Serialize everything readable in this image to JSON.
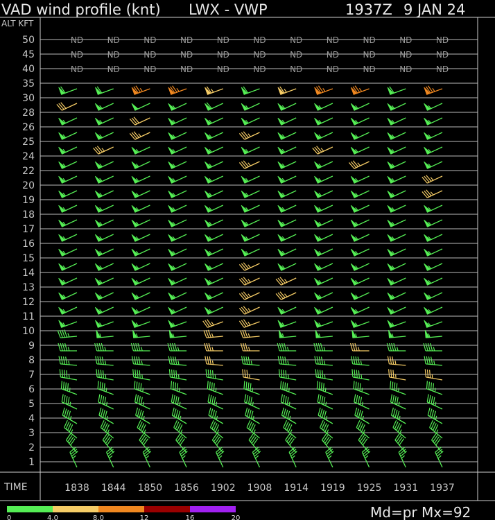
{
  "header": {
    "product": "VAD wind profile (knt)",
    "station": "LWX - VWP",
    "time": "1937Z",
    "date": "9 JAN 24"
  },
  "axis": {
    "alt_label": "ALT KFT",
    "time_label": "TIME",
    "nd_label": "ND"
  },
  "legend": {
    "ticks": [
      "0",
      "4.0",
      "8.0",
      "12",
      "16",
      "20"
    ],
    "colors": [
      "#55ee55",
      "#f5cc66",
      "#f08820",
      "#990000",
      "#a020f0"
    ]
  },
  "footer": {
    "mode": "Md=pr Mx=92"
  },
  "chart_data": {
    "type": "wind_profile",
    "title": "VAD wind profile (knt)",
    "times": [
      "1838",
      "1844",
      "1850",
      "1856",
      "1902",
      "1908",
      "1914",
      "1919",
      "1925",
      "1931",
      "1937"
    ],
    "altitudes_kft": [
      "50",
      "45",
      "40",
      "35",
      "30",
      "28",
      "26",
      "25",
      "24",
      "22",
      "20",
      "19",
      "18",
      "17",
      "16",
      "15",
      "14",
      "13",
      "12",
      "11",
      "10",
      "9",
      "8",
      "7",
      "6",
      "5",
      "4",
      "3",
      "2",
      "1"
    ],
    "nd_altitudes": [
      "50",
      "45",
      "40"
    ],
    "wind_rows": [
      {
        "alt": "35",
        "speed": [
          60,
          60,
          75,
          75,
          65,
          60,
          65,
          75,
          75,
          60,
          75
        ],
        "dir": [
          250,
          250,
          250,
          250,
          250,
          250,
          250,
          250,
          250,
          250,
          250
        ]
      },
      {
        "alt": "30",
        "speed": [
          30,
          55,
          50,
          55,
          60,
          55,
          55,
          55,
          55,
          55,
          55
        ],
        "dir": [
          245,
          245,
          245,
          245,
          245,
          245,
          245,
          245,
          245,
          245,
          245
        ]
      },
      {
        "alt": "28",
        "speed": [
          55,
          55,
          30,
          55,
          55,
          55,
          55,
          55,
          55,
          55,
          55
        ],
        "dir": [
          245,
          245,
          245,
          245,
          245,
          245,
          245,
          245,
          245,
          245,
          245
        ]
      },
      {
        "alt": "26",
        "speed": [
          55,
          55,
          35,
          55,
          55,
          35,
          55,
          55,
          55,
          55,
          55
        ],
        "dir": [
          245,
          245,
          245,
          245,
          245,
          245,
          245,
          245,
          245,
          245,
          245
        ]
      },
      {
        "alt": "25",
        "speed": [
          55,
          35,
          55,
          55,
          55,
          55,
          55,
          35,
          55,
          55,
          55
        ],
        "dir": [
          245,
          245,
          245,
          245,
          245,
          245,
          245,
          245,
          245,
          245,
          245
        ]
      },
      {
        "alt": "24",
        "speed": [
          55,
          55,
          55,
          55,
          55,
          35,
          55,
          55,
          35,
          55,
          55
        ],
        "dir": [
          245,
          245,
          245,
          245,
          245,
          245,
          245,
          245,
          245,
          245,
          245
        ]
      },
      {
        "alt": "22",
        "speed": [
          55,
          55,
          55,
          55,
          55,
          55,
          55,
          55,
          55,
          55,
          35
        ],
        "dir": [
          245,
          245,
          245,
          245,
          245,
          245,
          245,
          245,
          245,
          245,
          245
        ]
      },
      {
        "alt": "20",
        "speed": [
          55,
          55,
          55,
          55,
          55,
          55,
          55,
          55,
          55,
          55,
          35
        ],
        "dir": [
          245,
          245,
          245,
          245,
          245,
          245,
          245,
          245,
          245,
          245,
          245
        ]
      },
      {
        "alt": "19",
        "speed": [
          55,
          55,
          55,
          55,
          55,
          55,
          55,
          55,
          55,
          55,
          55
        ],
        "dir": [
          245,
          245,
          245,
          245,
          245,
          245,
          245,
          245,
          245,
          245,
          245
        ]
      },
      {
        "alt": "18",
        "speed": [
          55,
          55,
          55,
          55,
          55,
          55,
          55,
          55,
          55,
          55,
          55
        ],
        "dir": [
          245,
          245,
          245,
          245,
          245,
          245,
          245,
          245,
          245,
          245,
          245
        ]
      },
      {
        "alt": "17",
        "speed": [
          55,
          55,
          55,
          55,
          55,
          55,
          55,
          55,
          55,
          55,
          55
        ],
        "dir": [
          245,
          245,
          245,
          245,
          245,
          245,
          245,
          245,
          245,
          245,
          245
        ]
      },
      {
        "alt": "16",
        "speed": [
          55,
          55,
          55,
          55,
          55,
          55,
          55,
          55,
          55,
          55,
          55
        ],
        "dir": [
          245,
          245,
          245,
          245,
          245,
          245,
          245,
          245,
          245,
          245,
          245
        ]
      },
      {
        "alt": "15",
        "speed": [
          55,
          55,
          55,
          55,
          55,
          35,
          55,
          55,
          55,
          55,
          55
        ],
        "dir": [
          245,
          245,
          245,
          245,
          245,
          245,
          245,
          245,
          245,
          245,
          245
        ]
      },
      {
        "alt": "14",
        "speed": [
          55,
          55,
          55,
          55,
          55,
          35,
          35,
          55,
          55,
          55,
          55
        ],
        "dir": [
          245,
          245,
          245,
          245,
          245,
          245,
          245,
          245,
          245,
          245,
          245
        ]
      },
      {
        "alt": "13",
        "speed": [
          55,
          55,
          55,
          55,
          55,
          35,
          35,
          55,
          55,
          55,
          55
        ],
        "dir": [
          245,
          245,
          245,
          245,
          245,
          245,
          245,
          245,
          245,
          245,
          245
        ]
      },
      {
        "alt": "12",
        "speed": [
          55,
          55,
          55,
          55,
          55,
          35,
          55,
          55,
          55,
          55,
          55
        ],
        "dir": [
          245,
          245,
          245,
          245,
          245,
          245,
          245,
          245,
          245,
          245,
          245
        ]
      },
      {
        "alt": "11",
        "speed": [
          55,
          55,
          55,
          55,
          35,
          35,
          55,
          55,
          55,
          55,
          55
        ],
        "dir": [
          250,
          250,
          250,
          250,
          250,
          250,
          250,
          250,
          250,
          250,
          250
        ]
      },
      {
        "alt": "10",
        "speed": [
          45,
          55,
          55,
          55,
          35,
          35,
          55,
          55,
          55,
          55,
          55
        ],
        "dir": [
          265,
          265,
          265,
          265,
          265,
          265,
          265,
          265,
          265,
          265,
          265
        ]
      },
      {
        "alt": "9",
        "speed": [
          45,
          45,
          45,
          45,
          35,
          35,
          45,
          45,
          35,
          45,
          45
        ],
        "dir": [
          270,
          270,
          270,
          270,
          270,
          270,
          270,
          270,
          270,
          270,
          270
        ]
      },
      {
        "alt": "8",
        "speed": [
          45,
          45,
          45,
          45,
          35,
          45,
          45,
          45,
          45,
          35,
          45
        ],
        "dir": [
          275,
          275,
          275,
          275,
          275,
          275,
          275,
          275,
          275,
          275,
          275
        ]
      },
      {
        "alt": "7",
        "speed": [
          45,
          45,
          45,
          45,
          45,
          35,
          45,
          45,
          45,
          35,
          35
        ],
        "dir": [
          280,
          280,
          280,
          280,
          280,
          280,
          280,
          280,
          280,
          280,
          280
        ]
      },
      {
        "alt": "6",
        "speed": [
          45,
          45,
          45,
          45,
          45,
          45,
          45,
          45,
          45,
          45,
          45
        ],
        "dir": [
          290,
          290,
          290,
          290,
          290,
          290,
          290,
          290,
          290,
          290,
          290
        ]
      },
      {
        "alt": "5",
        "speed": [
          45,
          45,
          45,
          45,
          45,
          45,
          45,
          45,
          45,
          45,
          45
        ],
        "dir": [
          295,
          295,
          295,
          295,
          295,
          295,
          295,
          295,
          295,
          295,
          295
        ]
      },
      {
        "alt": "4",
        "speed": [
          45,
          45,
          45,
          45,
          45,
          45,
          45,
          45,
          45,
          45,
          45
        ],
        "dir": [
          300,
          300,
          300,
          300,
          300,
          300,
          300,
          300,
          300,
          300,
          300
        ]
      },
      {
        "alt": "3",
        "speed": [
          45,
          45,
          45,
          45,
          45,
          45,
          45,
          45,
          45,
          45,
          45
        ],
        "dir": [
          310,
          310,
          310,
          310,
          310,
          310,
          310,
          310,
          310,
          310,
          310
        ]
      },
      {
        "alt": "2",
        "speed": [
          40,
          40,
          40,
          40,
          40,
          40,
          40,
          40,
          40,
          40,
          40
        ],
        "dir": [
          320,
          320,
          320,
          320,
          320,
          320,
          320,
          320,
          320,
          320,
          320
        ]
      },
      {
        "alt": "1",
        "speed": [
          35,
          35,
          35,
          35,
          35,
          35,
          35,
          35,
          35,
          35,
          35
        ],
        "dir": [
          335,
          335,
          335,
          335,
          335,
          335,
          335,
          335,
          335,
          335,
          335
        ]
      }
    ],
    "speed_colors": {
      "green": "#55ee55",
      "yellow": "#f5cc66",
      "orange": "#f08820"
    },
    "rms_color_class": [
      {
        "alt": "35",
        "cls": [
          "g",
          "g",
          "o",
          "o",
          "y",
          "g",
          "y",
          "o",
          "o",
          "g",
          "o"
        ]
      },
      {
        "alt": "30",
        "cls": [
          "y",
          "g",
          "g",
          "g",
          "g",
          "g",
          "g",
          "g",
          "g",
          "g",
          "g"
        ]
      },
      {
        "alt": "28",
        "cls": [
          "g",
          "g",
          "y",
          "g",
          "g",
          "g",
          "g",
          "g",
          "g",
          "g",
          "g"
        ]
      },
      {
        "alt": "26",
        "cls": [
          "g",
          "g",
          "y",
          "g",
          "g",
          "y",
          "g",
          "g",
          "g",
          "g",
          "g"
        ]
      },
      {
        "alt": "25",
        "cls": [
          "g",
          "y",
          "g",
          "g",
          "g",
          "g",
          "g",
          "y",
          "g",
          "g",
          "g"
        ]
      },
      {
        "alt": "24",
        "cls": [
          "g",
          "g",
          "g",
          "g",
          "g",
          "y",
          "g",
          "g",
          "y",
          "g",
          "g"
        ]
      },
      {
        "alt": "22",
        "cls": [
          "g",
          "g",
          "g",
          "g",
          "g",
          "g",
          "g",
          "g",
          "g",
          "g",
          "y"
        ]
      },
      {
        "alt": "20",
        "cls": [
          "g",
          "g",
          "g",
          "g",
          "g",
          "g",
          "g",
          "g",
          "g",
          "g",
          "y"
        ]
      },
      {
        "alt": "15",
        "cls": [
          "g",
          "g",
          "g",
          "g",
          "g",
          "y",
          "g",
          "g",
          "g",
          "g",
          "g"
        ]
      },
      {
        "alt": "14",
        "cls": [
          "g",
          "g",
          "g",
          "g",
          "g",
          "y",
          "y",
          "g",
          "g",
          "g",
          "g"
        ]
      },
      {
        "alt": "13",
        "cls": [
          "g",
          "g",
          "g",
          "g",
          "g",
          "y",
          "y",
          "g",
          "g",
          "g",
          "g"
        ]
      },
      {
        "alt": "12",
        "cls": [
          "g",
          "g",
          "g",
          "g",
          "g",
          "y",
          "g",
          "g",
          "g",
          "g",
          "g"
        ]
      },
      {
        "alt": "11",
        "cls": [
          "g",
          "g",
          "g",
          "g",
          "y",
          "y",
          "g",
          "g",
          "g",
          "g",
          "g"
        ]
      },
      {
        "alt": "10",
        "cls": [
          "g",
          "g",
          "g",
          "g",
          "y",
          "y",
          "g",
          "g",
          "g",
          "g",
          "g"
        ]
      },
      {
        "alt": "9",
        "cls": [
          "g",
          "g",
          "g",
          "g",
          "y",
          "y",
          "g",
          "g",
          "y",
          "g",
          "g"
        ]
      },
      {
        "alt": "8",
        "cls": [
          "g",
          "g",
          "g",
          "g",
          "y",
          "g",
          "g",
          "g",
          "g",
          "y",
          "g"
        ]
      },
      {
        "alt": "7",
        "cls": [
          "g",
          "g",
          "g",
          "g",
          "g",
          "y",
          "g",
          "g",
          "g",
          "y",
          "y"
        ]
      }
    ]
  }
}
